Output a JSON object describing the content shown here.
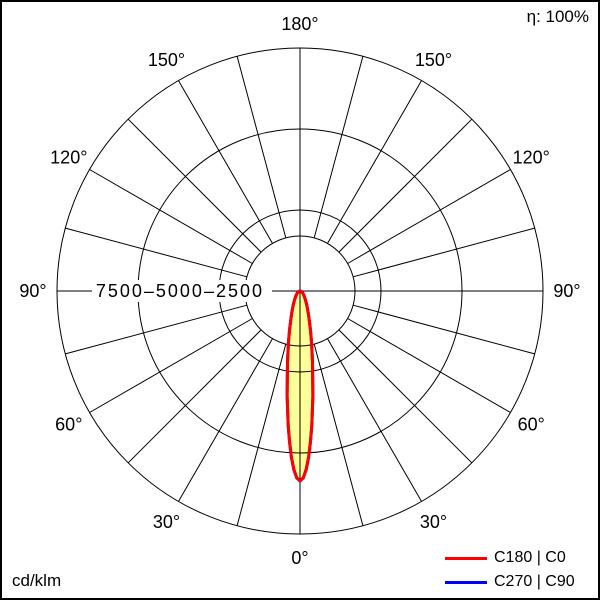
{
  "header": {
    "efficiency": "η: 100%"
  },
  "footer": {
    "units": "cd/klm"
  },
  "legend": [
    {
      "label": "C180 | C0",
      "color": "#ff0000"
    },
    {
      "label": "C270 | C90",
      "color": "#0000ff"
    }
  ],
  "chart_data": {
    "type": "polar",
    "subtype": "luminous-intensity-distribution",
    "units": "cd/klm",
    "efficiency_percent": 100,
    "rlim": [
      0,
      7500
    ],
    "rmax": 7500,
    "radial_ticks": [
      2500,
      5000,
      7500
    ],
    "radial_tick_label": "7500–5000–2500",
    "angle_labels_deg": [
      0,
      30,
      60,
      90,
      120,
      150,
      180
    ],
    "spoke_step_deg": 15,
    "grid": "on",
    "legend_position": "bottom-right",
    "series": [
      {
        "name": "C180 | C0",
        "color": "#ff0000",
        "fill": "#ffff99",
        "gamma_deg": [
          0,
          1,
          2,
          3,
          4,
          5,
          7,
          10,
          12.5,
          15,
          20,
          25,
          30,
          35,
          40,
          45,
          50,
          55,
          60,
          65,
          70,
          75,
          80,
          85,
          90
        ],
        "values_cd_klm": [
          5860,
          5770,
          5510,
          5120,
          4650,
          4170,
          3260,
          2230,
          1650,
          1250,
          770,
          510,
          360,
          260,
          200,
          150,
          120,
          93,
          72,
          56,
          42,
          30,
          20,
          10,
          0
        ]
      },
      {
        "name": "C270 | C90",
        "color": "#0000ff",
        "fill": "#ffff99",
        "gamma_deg": [
          0,
          1,
          2,
          3,
          4,
          5,
          7,
          10,
          12.5,
          15,
          20,
          25,
          30,
          35,
          40,
          45,
          50,
          55,
          60,
          65,
          70,
          75,
          80,
          85,
          90
        ],
        "values_cd_klm": [
          5860,
          5770,
          5510,
          5120,
          4650,
          4170,
          3260,
          2230,
          1650,
          1250,
          770,
          510,
          360,
          260,
          200,
          150,
          120,
          93,
          72,
          56,
          42,
          30,
          20,
          10,
          0
        ]
      }
    ]
  }
}
